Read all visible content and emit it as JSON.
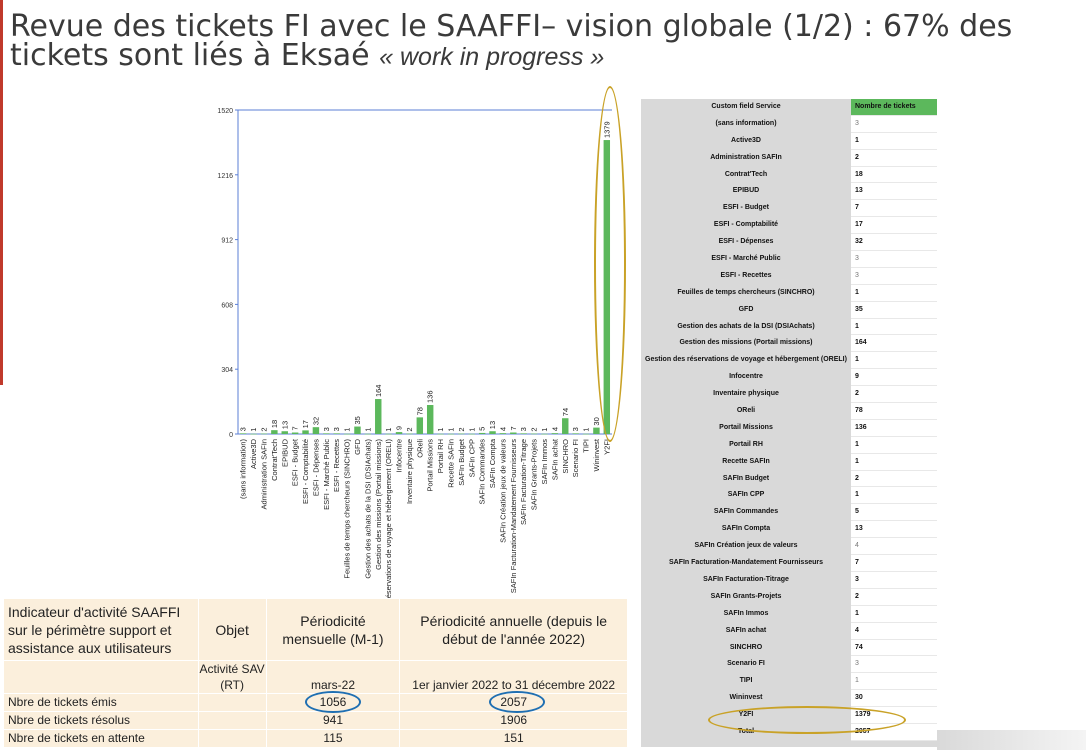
{
  "title": {
    "main": "Revue des tickets FI avec le SAAFFI– vision globale (1/2) : 67% des tickets sont liés à Eksaé",
    "wip": "« work in progress »"
  },
  "colors": {
    "bar": "#5cb85c",
    "header_green": "#5cb85c",
    "ring_blue": "#1f6fb2",
    "ring_gold": "#c9a227",
    "accent": "#c0392b"
  },
  "chart_data": {
    "type": "bar",
    "categories": [
      "(sans information)",
      "Active3D",
      "Administration SAFIn",
      "Contrat'Tech",
      "EPIBUD",
      "ESFI - Budget",
      "ESFI - Comptabilité",
      "ESFI - Dépenses",
      "ESFI - Marché Public",
      "ESFI - Recettes",
      "Feuilles de temps chercheurs (SINCHRO)",
      "GFD",
      "Gestion des achats de la DSI (DSIAchats)",
      "Gestion des missions (Portail missions)",
      "Gestion des réservations de voyage et hébergement (ORELI)",
      "Infocentre",
      "Inventaire physique",
      "OReli",
      "Portail Missions",
      "Portail RH",
      "Recette SAFIn",
      "SAFIn Budget",
      "SAFIn CPP",
      "SAFIn Commandes",
      "SAFIn Compta",
      "SAFIn Création jeux de valeurs",
      "SAFIn Facturation-Mandatement Fournisseurs",
      "SAFIn Facturation-Titrage",
      "SAFIn Grants-Projets",
      "SAFIn Immos",
      "SAFIn achat",
      "SINCHRO",
      "Scenario FI",
      "TIPI",
      "Wininvest",
      "Y2FI"
    ],
    "values": [
      3,
      1,
      2,
      18,
      13,
      7,
      17,
      32,
      3,
      3,
      1,
      35,
      1,
      164,
      1,
      9,
      2,
      78,
      136,
      1,
      1,
      2,
      1,
      5,
      13,
      4,
      7,
      3,
      2,
      1,
      4,
      74,
      3,
      1,
      30,
      1379
    ],
    "yticks": [
      0,
      304,
      608,
      912,
      1216,
      1520
    ],
    "ylim": [
      0,
      1520
    ],
    "xlabel": "",
    "ylabel": "",
    "legend": "none",
    "grid": false
  },
  "ticket_table": {
    "header_name": "Custom field Service",
    "header_value": "Nombre de tickets",
    "rows": [
      {
        "name": "(sans information)",
        "value": "3"
      },
      {
        "name": "Active3D",
        "value": "1"
      },
      {
        "name": "Administration SAFIn",
        "value": "2"
      },
      {
        "name": "Contrat'Tech",
        "value": "18"
      },
      {
        "name": "EPIBUD",
        "value": "13"
      },
      {
        "name": "ESFI - Budget",
        "value": "7"
      },
      {
        "name": "ESFI - Comptabilité",
        "value": "17"
      },
      {
        "name": "ESFI - Dépenses",
        "value": "32"
      },
      {
        "name": "ESFI - Marché Public",
        "value": "3"
      },
      {
        "name": "ESFI - Recettes",
        "value": "3"
      },
      {
        "name": "Feuilles de temps chercheurs (SINCHRO)",
        "value": "1"
      },
      {
        "name": "GFD",
        "value": "35"
      },
      {
        "name": "Gestion des achats de la DSI (DSIAchats)",
        "value": "1"
      },
      {
        "name": "Gestion des missions (Portail missions)",
        "value": "164"
      },
      {
        "name": "Gestion des réservations de voyage et hébergement (ORELI)",
        "value": "1"
      },
      {
        "name": "Infocentre",
        "value": "9"
      },
      {
        "name": "Inventaire physique",
        "value": "2"
      },
      {
        "name": "OReli",
        "value": "78"
      },
      {
        "name": "Portail Missions",
        "value": "136"
      },
      {
        "name": "Portail RH",
        "value": "1"
      },
      {
        "name": "Recette SAFIn",
        "value": "1"
      },
      {
        "name": "SAFIn Budget",
        "value": "2"
      },
      {
        "name": "SAFIn CPP",
        "value": "1"
      },
      {
        "name": "SAFIn Commandes",
        "value": "5"
      },
      {
        "name": "SAFIn Compta",
        "value": "13"
      },
      {
        "name": "SAFIn Création jeux de valeurs",
        "value": "4"
      },
      {
        "name": "SAFIn Facturation-Mandatement Fournisseurs",
        "value": "7"
      },
      {
        "name": "SAFIn Facturation-Titrage",
        "value": "3"
      },
      {
        "name": "SAFIn Grants-Projets",
        "value": "2"
      },
      {
        "name": "SAFIn Immos",
        "value": "1"
      },
      {
        "name": "SAFIn achat",
        "value": "4"
      },
      {
        "name": "SINCHRO",
        "value": "74"
      },
      {
        "name": "Scenario FI",
        "value": "3"
      },
      {
        "name": "TIPI",
        "value": "1"
      },
      {
        "name": "Wininvest",
        "value": "30"
      },
      {
        "name": "Y2FI",
        "value": "1379"
      },
      {
        "name": "Total",
        "value": "2057"
      }
    ]
  },
  "indicator_table": {
    "header_indicator": "Indicateur d'activité SAAFFI sur le périmètre support et assistance aux utilisateurs",
    "header_objet": "Objet",
    "header_monthly": "Périodicité mensuelle (M-1)",
    "header_annual": "Périodicité annuelle (depuis le début de l'année 2022)",
    "sub_objet": "Activité SAV (RT)",
    "sub_monthly": "mars-22",
    "sub_annual": "1er janvier 2022 to 31 décembre 2022",
    "rows": [
      {
        "label": "Nbre de tickets émis",
        "monthly": "1056",
        "annual": "2057"
      },
      {
        "label": "Nbre de tickets résolus",
        "monthly": "941",
        "annual": "1906"
      },
      {
        "label": "Nbre de tickets en attente",
        "monthly": "115",
        "annual": "151"
      }
    ]
  }
}
